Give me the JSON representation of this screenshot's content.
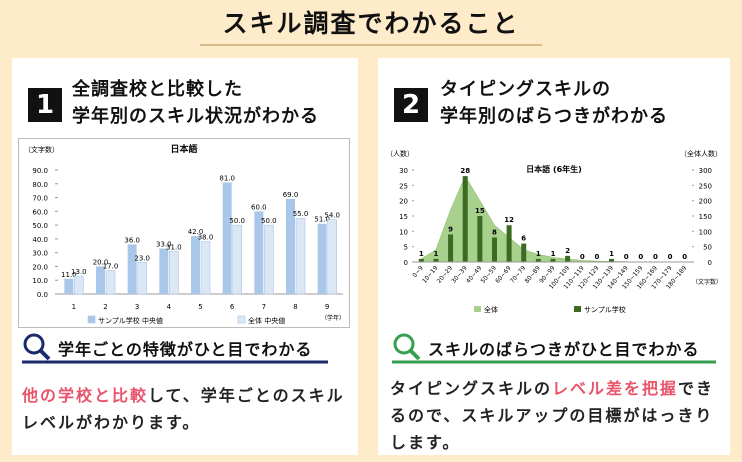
{
  "header": {
    "title": "スキル調査でわかること"
  },
  "panels": [
    {
      "number": "1",
      "heading": [
        "全調査校と比較した",
        "学年別のスキル状況がわかる"
      ],
      "subheading": "学年ごとの特徴がひと目でわかる",
      "body": [
        {
          "text": "他の学校と比較",
          "highlight": true
        },
        {
          "text": "して、学年ごとのスキルレベルがわかります。",
          "highlight": false
        }
      ]
    },
    {
      "number": "2",
      "heading": [
        "タイピングスキルの",
        "学年別のばらつきがわかる"
      ],
      "subheading": "スキルのばらつきがひと目でわかる",
      "body": [
        {
          "text": "タイピングスキルの",
          "highlight": false
        },
        {
          "text": "レベル差を把握",
          "highlight": true
        },
        {
          "text": "できるので、スキルアップの目標がはっきりします。",
          "highlight": false
        }
      ]
    }
  ],
  "chart_data": [
    {
      "type": "bar",
      "title": "日本語",
      "y_label": "（文字数）",
      "x_label": "（学年）",
      "categories": [
        "1",
        "2",
        "3",
        "4",
        "5",
        "6",
        "7",
        "8",
        "9"
      ],
      "series": [
        {
          "name": "サンプル学校 中央値",
          "color": "#a9c7e8",
          "values": [
            11,
            20,
            36,
            33,
            42,
            81,
            60,
            69,
            51
          ],
          "value_labels": [
            "11.0",
            "20.0",
            "36.0",
            "33.0",
            "42.0",
            "81.0",
            "60.0",
            "69.0",
            "51.0"
          ]
        },
        {
          "name": "全体 中央値",
          "color": "#dbe7f5",
          "values": [
            13,
            17,
            23,
            31,
            38,
            50,
            50,
            55,
            54
          ],
          "value_labels": [
            "13.0",
            "17.0",
            "23.0",
            "31.0",
            "38.0",
            "50.0",
            "50.0",
            "55.0",
            "54.0"
          ]
        }
      ],
      "ylim": [
        0,
        90
      ],
      "yticks": [
        {
          "value": 0,
          "label": "0.0"
        },
        {
          "value": 10,
          "label": "10.0"
        },
        {
          "value": 20,
          "label": "20.0"
        },
        {
          "value": 30,
          "label": "30.0"
        },
        {
          "value": 40,
          "label": "40.0"
        },
        {
          "value": 50,
          "label": "50.0"
        },
        {
          "value": 60,
          "label": "60.0"
        },
        {
          "value": 70,
          "label": "70.0"
        },
        {
          "value": 80,
          "label": "80.0"
        },
        {
          "value": 90,
          "label": "90.0"
        }
      ],
      "legend": "bottom"
    },
    {
      "type": "combo",
      "title": "日本語 (6年生)",
      "y_label": "（人数）",
      "y2_label": "（全体人数）",
      "x_label": "（文字数）",
      "categories": [
        "0~9",
        "10~19",
        "20~29",
        "30~39",
        "40~49",
        "50~59",
        "60~69",
        "70~79",
        "80~89",
        "90~99",
        "100~109",
        "110~119",
        "120~129",
        "130~139",
        "140~149",
        "150~159",
        "160~169",
        "170~179",
        "180~189"
      ],
      "series": [
        {
          "name": "全体",
          "type": "area",
          "axis": "y2",
          "color": "#a9d18e",
          "values": [
            10,
            40,
            170,
            280,
            200,
            120,
            80,
            40,
            25,
            15,
            10,
            5,
            3,
            2,
            1,
            0,
            0,
            0,
            0
          ]
        },
        {
          "name": "サンプル学校",
          "type": "bar",
          "color": "#3b6b22",
          "values": [
            1,
            1,
            9,
            28,
            15,
            8,
            12,
            6,
            1,
            1,
            2,
            0,
            0,
            1,
            0,
            0,
            0,
            0,
            0
          ]
        }
      ],
      "ylim": [
        0,
        30
      ],
      "yticks": [
        0,
        5,
        10,
        15,
        20,
        25,
        30
      ],
      "y2lim": [
        0,
        300
      ],
      "y2ticks": [
        0,
        50,
        100,
        150,
        200,
        250,
        300
      ],
      "legend": "bottom"
    }
  ]
}
